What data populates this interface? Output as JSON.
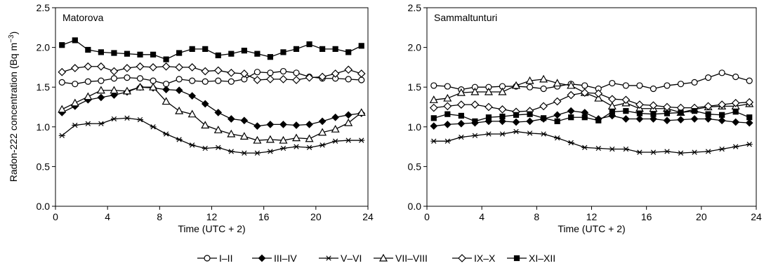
{
  "figure": {
    "ylabel_main": "Radon-222 concentration  (Bq m",
    "ylabel_sup": "−3",
    "ylabel_close": ")"
  },
  "chart_data": [
    {
      "type": "line",
      "title": "Matorova",
      "xlabel": "Time (UTC + 2)",
      "xlim": [
        0,
        24
      ],
      "ylim": [
        0,
        2.5
      ],
      "xticks": [
        "0",
        "4",
        "8",
        "12",
        "16",
        "20",
        "24"
      ],
      "yticks": [
        "0.0",
        "0.5",
        "1.0",
        "1.5",
        "2.0",
        "2.5"
      ],
      "x": [
        0.5,
        1.5,
        2.5,
        3.5,
        4.5,
        5.5,
        6.5,
        7.5,
        8.5,
        9.5,
        10.5,
        11.5,
        12.5,
        13.5,
        14.5,
        15.5,
        16.5,
        17.5,
        18.5,
        19.5,
        20.5,
        21.5,
        22.5,
        23.5
      ],
      "series": [
        {
          "name": "I–II",
          "marker": "circle",
          "values": [
            1.56,
            1.54,
            1.57,
            1.58,
            1.61,
            1.62,
            1.61,
            1.58,
            1.54,
            1.6,
            1.58,
            1.57,
            1.58,
            1.57,
            1.6,
            1.69,
            1.68,
            1.7,
            1.68,
            1.63,
            1.61,
            1.61,
            1.6,
            1.59
          ]
        },
        {
          "name": "III–IV",
          "marker": "diamond-filled",
          "values": [
            1.18,
            1.26,
            1.34,
            1.37,
            1.4,
            1.44,
            1.5,
            1.49,
            1.47,
            1.46,
            1.39,
            1.29,
            1.18,
            1.1,
            1.08,
            1.01,
            1.03,
            1.03,
            1.02,
            1.03,
            1.07,
            1.12,
            1.15,
            1.17
          ]
        },
        {
          "name": "V–VI",
          "marker": "asterisk",
          "values": [
            0.89,
            1.02,
            1.04,
            1.04,
            1.1,
            1.11,
            1.09,
            1.0,
            0.91,
            0.84,
            0.77,
            0.73,
            0.74,
            0.69,
            0.67,
            0.67,
            0.69,
            0.73,
            0.75,
            0.74,
            0.77,
            0.82,
            0.83,
            0.83
          ]
        },
        {
          "name": "VII–VIII",
          "marker": "triangle",
          "values": [
            1.22,
            1.3,
            1.38,
            1.46,
            1.46,
            1.45,
            1.5,
            1.5,
            1.32,
            1.2,
            1.16,
            1.02,
            0.96,
            0.91,
            0.88,
            0.83,
            0.84,
            0.83,
            0.86,
            0.85,
            0.93,
            0.97,
            1.05,
            1.18
          ]
        },
        {
          "name": "IX–X",
          "marker": "diamond",
          "values": [
            1.69,
            1.74,
            1.76,
            1.76,
            1.7,
            1.74,
            1.76,
            1.75,
            1.76,
            1.75,
            1.75,
            1.7,
            1.71,
            1.68,
            1.67,
            1.59,
            1.6,
            1.6,
            1.59,
            1.62,
            1.63,
            1.67,
            1.72,
            1.67
          ]
        },
        {
          "name": "XI–XII",
          "marker": "square-filled",
          "values": [
            2.03,
            2.09,
            1.97,
            1.94,
            1.93,
            1.92,
            1.91,
            1.91,
            1.85,
            1.93,
            1.98,
            1.98,
            1.9,
            1.92,
            1.96,
            1.92,
            1.88,
            1.94,
            1.98,
            2.04,
            1.98,
            1.98,
            1.94,
            2.02
          ]
        }
      ]
    },
    {
      "type": "line",
      "title": "Sammaltunturi",
      "xlabel": "Time (UTC + 2)",
      "xlim": [
        0,
        24
      ],
      "ylim": [
        0,
        2.5
      ],
      "xticks": [
        "0",
        "4",
        "8",
        "12",
        "16",
        "20",
        "24"
      ],
      "yticks": [
        "0.0",
        "0.5",
        "1.0",
        "1.5",
        "2.0",
        "2.5"
      ],
      "x": [
        0.5,
        1.5,
        2.5,
        3.5,
        4.5,
        5.5,
        6.5,
        7.5,
        8.5,
        9.5,
        10.5,
        11.5,
        12.5,
        13.5,
        14.5,
        15.5,
        16.5,
        17.5,
        18.5,
        19.5,
        20.5,
        21.5,
        22.5,
        23.5
      ],
      "series": [
        {
          "name": "I–II",
          "marker": "circle",
          "values": [
            1.52,
            1.51,
            1.47,
            1.5,
            1.5,
            1.51,
            1.51,
            1.5,
            1.48,
            1.51,
            1.54,
            1.52,
            1.48,
            1.55,
            1.52,
            1.52,
            1.48,
            1.52,
            1.54,
            1.56,
            1.62,
            1.68,
            1.63,
            1.58
          ]
        },
        {
          "name": "III–IV",
          "marker": "diamond-filled",
          "values": [
            1.01,
            1.03,
            1.04,
            1.05,
            1.07,
            1.07,
            1.06,
            1.07,
            1.1,
            1.15,
            1.2,
            1.18,
            1.1,
            1.14,
            1.1,
            1.1,
            1.1,
            1.08,
            1.09,
            1.1,
            1.1,
            1.08,
            1.06,
            1.05
          ]
        },
        {
          "name": "V–VI",
          "marker": "asterisk",
          "values": [
            0.82,
            0.82,
            0.87,
            0.89,
            0.91,
            0.91,
            0.94,
            0.92,
            0.91,
            0.86,
            0.8,
            0.74,
            0.73,
            0.72,
            0.72,
            0.68,
            0.68,
            0.69,
            0.67,
            0.68,
            0.69,
            0.72,
            0.75,
            0.78
          ]
        },
        {
          "name": "VII–VIII",
          "marker": "triangle",
          "values": [
            1.34,
            1.36,
            1.43,
            1.44,
            1.44,
            1.44,
            1.52,
            1.58,
            1.6,
            1.55,
            1.52,
            1.43,
            1.36,
            1.26,
            1.3,
            1.23,
            1.23,
            1.23,
            1.18,
            1.22,
            1.25,
            1.26,
            1.26,
            1.29
          ]
        },
        {
          "name": "IX–X",
          "marker": "diamond",
          "values": [
            1.24,
            1.26,
            1.28,
            1.28,
            1.25,
            1.22,
            1.19,
            1.2,
            1.26,
            1.32,
            1.4,
            1.43,
            1.42,
            1.35,
            1.34,
            1.28,
            1.27,
            1.25,
            1.24,
            1.24,
            1.26,
            1.28,
            1.3,
            1.31
          ]
        },
        {
          "name": "XI–XII",
          "marker": "square-filled",
          "values": [
            1.11,
            1.16,
            1.14,
            1.07,
            1.12,
            1.13,
            1.15,
            1.16,
            1.11,
            1.07,
            1.12,
            1.12,
            1.08,
            1.19,
            1.2,
            1.17,
            1.16,
            1.17,
            1.18,
            1.2,
            1.16,
            1.15,
            1.19,
            1.12
          ]
        }
      ]
    }
  ]
}
